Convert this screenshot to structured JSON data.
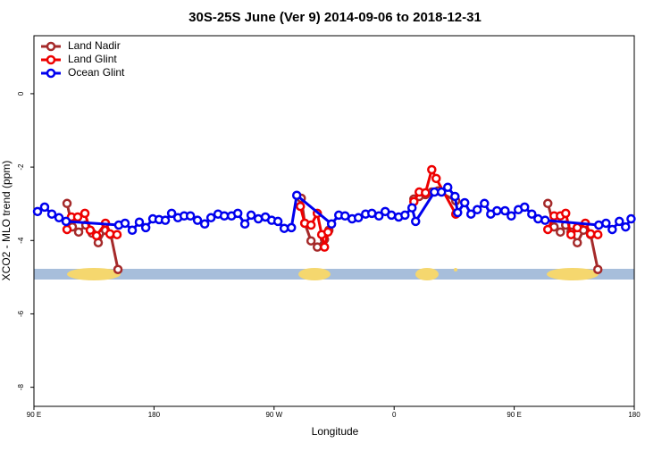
{
  "chart_data": {
    "type": "line",
    "title": "30S-25S June (Ver 9)   2014-09-06 to 2018-12-31",
    "x_label": "Longitude",
    "y_label": "XCO2 - MLO trend (ppm)",
    "xlim": [
      90,
      540
    ],
    "ylim": [
      -8.52,
      1.58
    ],
    "xticks": [
      {
        "value": 90,
        "label": "90 E"
      },
      180,
      {
        "value": 270,
        "label": "90 W"
      },
      {
        "value": 360,
        "label": "0"
      },
      {
        "value": 450,
        "label": "90 E"
      },
      {
        "value": 540,
        "label": "180"
      }
    ],
    "yticks": [
      0,
      -2,
      -4,
      -6,
      -8
    ],
    "legend": "top-left",
    "series": [
      {
        "name": "Land Nadir",
        "color": "#a52a2a",
        "x": [
          114.8,
          118.8,
          123.5,
          128.9,
          133.6,
          138.2,
          143.6,
          147.6,
          153.0,
          null,
          290.4,
          293.0,
          297.7,
          302.4,
          307.8,
          311.1,
          null,
          374.8,
          378.8,
          383.5,
          388.2,
          392.9,
          406.2,
          null,
          475.2,
          479.9,
          484.6,
          488.6,
          492.6,
          497.3,
          502.0,
          507.3,
          512.7
        ],
        "values": [
          -2.99,
          -3.63,
          -3.77,
          -3.58,
          -3.8,
          -4.06,
          -3.72,
          -3.84,
          -4.79,
          null,
          -2.85,
          -3.53,
          -4.01,
          -4.18,
          -3.97,
          -3.72,
          null,
          -2.87,
          -2.8,
          -2.75,
          -2.68,
          -2.65,
          -2.92,
          null,
          -2.99,
          -3.63,
          -3.77,
          -3.58,
          -3.77,
          -4.06,
          -3.72,
          -3.84,
          -4.79
        ]
      },
      {
        "name": "Land Glint",
        "color": "#ee0000",
        "x": [
          114.8,
          118.1,
          122.8,
          128.2,
          132.2,
          136.9,
          143.6,
          147.0,
          152.3,
          null,
          289.7,
          293.0,
          297.7,
          302.4,
          305.7,
          307.8,
          310.4,
          null,
          374.8,
          378.8,
          383.5,
          388.2,
          391.5,
          406.2,
          null,
          475.2,
          479.9,
          484.6,
          488.6,
          492.6,
          497.3,
          503.3,
          507.3,
          512.7
        ],
        "values": [
          -3.7,
          -3.36,
          -3.36,
          -3.26,
          -3.72,
          -3.87,
          -3.53,
          -3.82,
          -3.84,
          null,
          -3.07,
          -3.53,
          -3.58,
          -3.26,
          -3.84,
          -4.18,
          -3.77,
          null,
          -2.94,
          -2.68,
          -2.7,
          -2.07,
          -2.31,
          -3.28,
          null,
          -3.7,
          -3.33,
          -3.33,
          -3.26,
          -3.84,
          -3.65,
          -3.53,
          -3.82,
          -3.84
        ]
      },
      {
        "name": "Ocean Glint",
        "color": "#0000ee",
        "x": [
          92.7,
          98.0,
          103.4,
          108.8,
          114.1,
          153.6,
          158.3,
          163.7,
          169.0,
          173.8,
          179.1,
          183.8,
          188.5,
          193.2,
          197.9,
          202.6,
          207.3,
          212.6,
          218.0,
          222.7,
          228.0,
          232.7,
          238.1,
          242.8,
          248.1,
          252.8,
          258.2,
          263.5,
          268.2,
          272.9,
          277.6,
          283.0,
          287.0,
          313.1,
          318.5,
          323.2,
          328.5,
          333.2,
          338.6,
          343.3,
          348.6,
          353.3,
          358.0,
          363.4,
          368.1,
          373.4,
          376.1,
          390.2,
          395.5,
          400.2,
          405.6,
          407.6,
          412.9,
          417.6,
          422.3,
          427.7,
          432.4,
          437.1,
          443.1,
          447.8,
          453.1,
          457.8,
          463.2,
          467.9,
          473.2,
          513.4,
          518.8,
          523.5,
          528.8,
          533.5,
          537.6
        ],
        "values": [
          -3.21,
          -3.09,
          -3.28,
          -3.38,
          -3.48,
          -3.58,
          -3.53,
          -3.72,
          -3.5,
          -3.65,
          -3.41,
          -3.43,
          -3.45,
          -3.26,
          -3.38,
          -3.33,
          -3.33,
          -3.45,
          -3.55,
          -3.38,
          -3.28,
          -3.33,
          -3.33,
          -3.26,
          -3.55,
          -3.31,
          -3.41,
          -3.36,
          -3.45,
          -3.48,
          -3.67,
          -3.65,
          -2.77,
          -3.55,
          -3.31,
          -3.33,
          -3.41,
          -3.38,
          -3.28,
          -3.26,
          -3.33,
          -3.21,
          -3.31,
          -3.36,
          -3.31,
          -3.11,
          -3.48,
          -2.68,
          -2.68,
          -2.55,
          -2.8,
          -3.24,
          -2.97,
          -3.28,
          -3.16,
          -2.99,
          -3.28,
          -3.19,
          -3.19,
          -3.33,
          -3.16,
          -3.09,
          -3.28,
          -3.41,
          -3.45,
          -3.58,
          -3.53,
          -3.7,
          -3.48,
          -3.63,
          -3.41
        ]
      }
    ]
  }
}
